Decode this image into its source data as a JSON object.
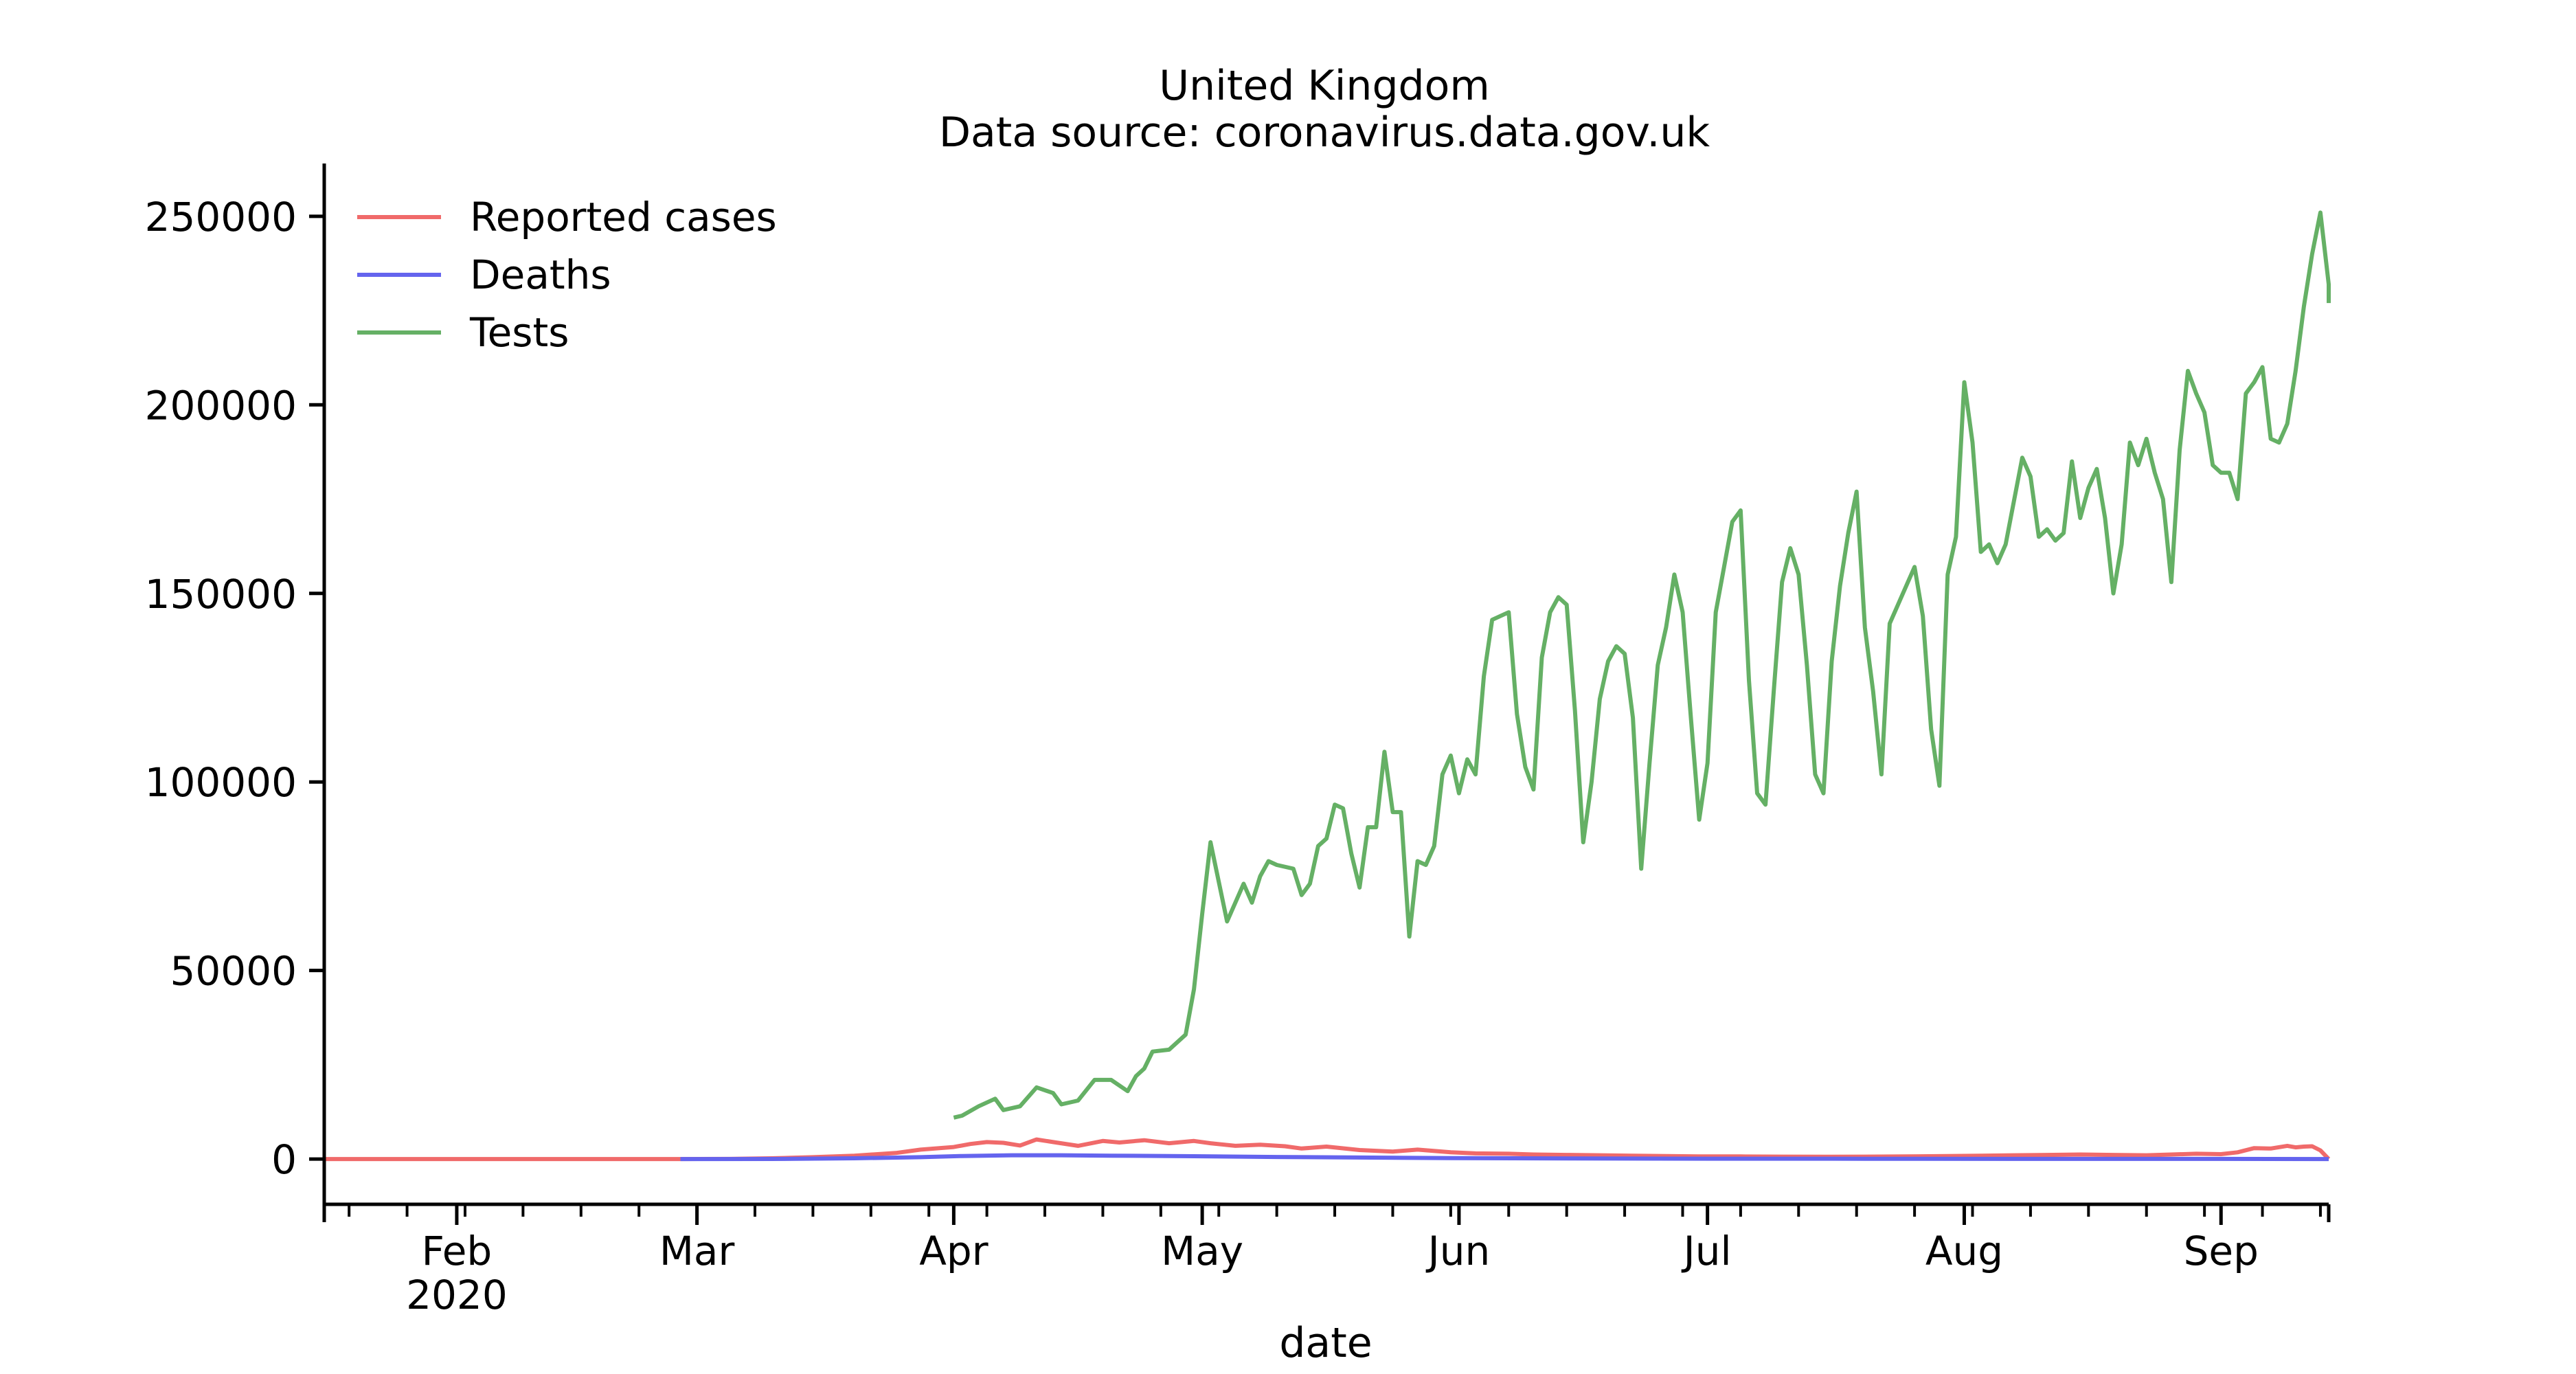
{
  "chart_data": {
    "type": "line",
    "title": "United Kingdom",
    "subtitle": "Data source: coronavirus.data.gov.uk",
    "xlabel": "date",
    "ylabel": "",
    "ylim": [
      -12000,
      264000
    ],
    "xlim": [
      "2020-01-16",
      "2020-09-14"
    ],
    "grid": false,
    "legend_position": "top-left",
    "yticks": [
      0,
      50000,
      100000,
      150000,
      200000,
      250000
    ],
    "xticks": [
      {
        "date": "2020-02-01",
        "label": "Feb",
        "sublabel": "2020"
      },
      {
        "date": "2020-03-01",
        "label": "Mar",
        "sublabel": ""
      },
      {
        "date": "2020-04-01",
        "label": "Apr",
        "sublabel": ""
      },
      {
        "date": "2020-05-01",
        "label": "May",
        "sublabel": ""
      },
      {
        "date": "2020-06-01",
        "label": "Jun",
        "sublabel": ""
      },
      {
        "date": "2020-07-01",
        "label": "Jul",
        "sublabel": ""
      },
      {
        "date": "2020-08-01",
        "label": "Aug",
        "sublabel": ""
      },
      {
        "date": "2020-09-01",
        "label": "Sep",
        "sublabel": ""
      }
    ],
    "series": [
      {
        "name": "Reported cases",
        "color": "#f06a6a",
        "points": [
          [
            "2020-01-16",
            0
          ],
          [
            "2020-02-15",
            0
          ],
          [
            "2020-02-28",
            0
          ],
          [
            "2020-03-05",
            50
          ],
          [
            "2020-03-10",
            200
          ],
          [
            "2020-03-15",
            500
          ],
          [
            "2020-03-20",
            900
          ],
          [
            "2020-03-25",
            1600
          ],
          [
            "2020-03-28",
            2500
          ],
          [
            "2020-04-01",
            3200
          ],
          [
            "2020-04-03",
            4000
          ],
          [
            "2020-04-05",
            4500
          ],
          [
            "2020-04-07",
            4300
          ],
          [
            "2020-04-09",
            3600
          ],
          [
            "2020-04-11",
            5200
          ],
          [
            "2020-04-13",
            4500
          ],
          [
            "2020-04-16",
            3500
          ],
          [
            "2020-04-19",
            4800
          ],
          [
            "2020-04-21",
            4400
          ],
          [
            "2020-04-24",
            5000
          ],
          [
            "2020-04-27",
            4200
          ],
          [
            "2020-04-30",
            4800
          ],
          [
            "2020-05-02",
            4200
          ],
          [
            "2020-05-05",
            3500
          ],
          [
            "2020-05-08",
            3800
          ],
          [
            "2020-05-11",
            3400
          ],
          [
            "2020-05-13",
            2800
          ],
          [
            "2020-05-16",
            3300
          ],
          [
            "2020-05-20",
            2400
          ],
          [
            "2020-05-24",
            2000
          ],
          [
            "2020-05-27",
            2500
          ],
          [
            "2020-05-31",
            1800
          ],
          [
            "2020-06-03",
            1500
          ],
          [
            "2020-06-07",
            1400
          ],
          [
            "2020-06-10",
            1200
          ],
          [
            "2020-06-14",
            1100
          ],
          [
            "2020-06-18",
            1000
          ],
          [
            "2020-06-22",
            900
          ],
          [
            "2020-06-26",
            800
          ],
          [
            "2020-06-30",
            700
          ],
          [
            "2020-07-05",
            700
          ],
          [
            "2020-07-10",
            650
          ],
          [
            "2020-07-15",
            600
          ],
          [
            "2020-07-20",
            650
          ],
          [
            "2020-07-25",
            700
          ],
          [
            "2020-07-30",
            800
          ],
          [
            "2020-08-03",
            900
          ],
          [
            "2020-08-07",
            1000
          ],
          [
            "2020-08-11",
            1100
          ],
          [
            "2020-08-15",
            1200
          ],
          [
            "2020-08-19",
            1100
          ],
          [
            "2020-08-23",
            1000
          ],
          [
            "2020-08-26",
            1200
          ],
          [
            "2020-08-29",
            1400
          ],
          [
            "2020-09-01",
            1300
          ],
          [
            "2020-09-03",
            1800
          ],
          [
            "2020-09-05",
            2900
          ],
          [
            "2020-09-07",
            2800
          ],
          [
            "2020-09-09",
            3500
          ],
          [
            "2020-09-10",
            3100
          ],
          [
            "2020-09-11",
            3300
          ],
          [
            "2020-09-12",
            3400
          ],
          [
            "2020-09-13",
            2300
          ],
          [
            "2020-09-14",
            0
          ]
        ]
      },
      {
        "name": "Deaths",
        "color": "#6464ee",
        "points": [
          [
            "2020-02-28",
            0
          ],
          [
            "2020-03-10",
            20
          ],
          [
            "2020-03-20",
            200
          ],
          [
            "2020-03-28",
            500
          ],
          [
            "2020-04-02",
            800
          ],
          [
            "2020-04-08",
            1000
          ],
          [
            "2020-04-14",
            1000
          ],
          [
            "2020-04-20",
            900
          ],
          [
            "2020-04-30",
            750
          ],
          [
            "2020-05-10",
            550
          ],
          [
            "2020-05-20",
            400
          ],
          [
            "2020-05-31",
            250
          ],
          [
            "2020-06-15",
            150
          ],
          [
            "2020-07-01",
            100
          ],
          [
            "2020-07-20",
            80
          ],
          [
            "2020-08-10",
            50
          ],
          [
            "2020-09-01",
            40
          ],
          [
            "2020-09-14",
            0
          ]
        ]
      },
      {
        "name": "Tests",
        "color": "#65b065",
        "points": [
          [
            "2020-04-01",
            11000
          ],
          [
            "2020-04-02",
            11500
          ],
          [
            "2020-04-04",
            14000
          ],
          [
            "2020-04-06",
            16000
          ],
          [
            "2020-04-07",
            13000
          ],
          [
            "2020-04-09",
            14000
          ],
          [
            "2020-04-11",
            19000
          ],
          [
            "2020-04-13",
            17500
          ],
          [
            "2020-04-14",
            14500
          ],
          [
            "2020-04-16",
            15500
          ],
          [
            "2020-04-18",
            21000
          ],
          [
            "2020-04-20",
            21000
          ],
          [
            "2020-04-22",
            18000
          ],
          [
            "2020-04-23",
            22000
          ],
          [
            "2020-04-24",
            24000
          ],
          [
            "2020-04-25",
            28500
          ],
          [
            "2020-04-27",
            29000
          ],
          [
            "2020-04-29",
            33000
          ],
          [
            "2020-04-30",
            45000
          ],
          [
            "2020-05-01",
            65000
          ],
          [
            "2020-05-02",
            84000
          ],
          [
            "2020-05-04",
            63000
          ],
          [
            "2020-05-06",
            73000
          ],
          [
            "2020-05-07",
            68000
          ],
          [
            "2020-05-08",
            75000
          ],
          [
            "2020-05-09",
            79000
          ],
          [
            "2020-05-10",
            78000
          ],
          [
            "2020-05-12",
            77000
          ],
          [
            "2020-05-13",
            70000
          ],
          [
            "2020-05-14",
            73000
          ],
          [
            "2020-05-15",
            83000
          ],
          [
            "2020-05-16",
            85000
          ],
          [
            "2020-05-17",
            94000
          ],
          [
            "2020-05-18",
            93000
          ],
          [
            "2020-05-19",
            81000
          ],
          [
            "2020-05-20",
            72000
          ],
          [
            "2020-05-21",
            88000
          ],
          [
            "2020-05-22",
            88000
          ],
          [
            "2020-05-23",
            108000
          ],
          [
            "2020-05-24",
            92000
          ],
          [
            "2020-05-25",
            92000
          ],
          [
            "2020-05-26",
            59000
          ],
          [
            "2020-05-27",
            79000
          ],
          [
            "2020-05-28",
            78000
          ],
          [
            "2020-05-29",
            83000
          ],
          [
            "2020-05-30",
            102000
          ],
          [
            "2020-05-31",
            107000
          ],
          [
            "2020-06-01",
            97000
          ],
          [
            "2020-06-02",
            106000
          ],
          [
            "2020-06-03",
            102000
          ],
          [
            "2020-06-04",
            128000
          ],
          [
            "2020-06-05",
            143000
          ],
          [
            "2020-06-07",
            145000
          ],
          [
            "2020-06-08",
            118000
          ],
          [
            "2020-06-09",
            104000
          ],
          [
            "2020-06-10",
            98000
          ],
          [
            "2020-06-11",
            133000
          ],
          [
            "2020-06-12",
            145000
          ],
          [
            "2020-06-13",
            149000
          ],
          [
            "2020-06-14",
            147000
          ],
          [
            "2020-06-15",
            119000
          ],
          [
            "2020-06-16",
            84000
          ],
          [
            "2020-06-17",
            100000
          ],
          [
            "2020-06-18",
            122000
          ],
          [
            "2020-06-19",
            132000
          ],
          [
            "2020-06-20",
            136000
          ],
          [
            "2020-06-21",
            134000
          ],
          [
            "2020-06-22",
            117000
          ],
          [
            "2020-06-23",
            77000
          ],
          [
            "2020-06-24",
            105000
          ],
          [
            "2020-06-25",
            131000
          ],
          [
            "2020-06-26",
            141000
          ],
          [
            "2020-06-27",
            155000
          ],
          [
            "2020-06-28",
            145000
          ],
          [
            "2020-06-29",
            117000
          ],
          [
            "2020-06-30",
            90000
          ],
          [
            "2020-07-01",
            105000
          ],
          [
            "2020-07-02",
            145000
          ],
          [
            "2020-07-03",
            157000
          ],
          [
            "2020-07-04",
            169000
          ],
          [
            "2020-07-05",
            172000
          ],
          [
            "2020-07-06",
            127000
          ],
          [
            "2020-07-07",
            97000
          ],
          [
            "2020-07-08",
            94000
          ],
          [
            "2020-07-09",
            124000
          ],
          [
            "2020-07-10",
            153000
          ],
          [
            "2020-07-11",
            162000
          ],
          [
            "2020-07-12",
            155000
          ],
          [
            "2020-07-13",
            131000
          ],
          [
            "2020-07-14",
            102000
          ],
          [
            "2020-07-15",
            97000
          ],
          [
            "2020-07-16",
            132000
          ],
          [
            "2020-07-17",
            152000
          ],
          [
            "2020-07-18",
            166000
          ],
          [
            "2020-07-19",
            177000
          ],
          [
            "2020-07-20",
            141000
          ],
          [
            "2020-07-21",
            124000
          ],
          [
            "2020-07-22",
            102000
          ],
          [
            "2020-07-23",
            142000
          ],
          [
            "2020-07-24",
            147000
          ],
          [
            "2020-07-25",
            152000
          ],
          [
            "2020-07-26",
            157000
          ],
          [
            "2020-07-27",
            144000
          ],
          [
            "2020-07-28",
            114000
          ],
          [
            "2020-07-29",
            99000
          ],
          [
            "2020-07-30",
            155000
          ],
          [
            "2020-07-31",
            165000
          ],
          [
            "2020-08-01",
            206000
          ],
          [
            "2020-08-02",
            190000
          ],
          [
            "2020-08-03",
            161000
          ],
          [
            "2020-08-04",
            163000
          ],
          [
            "2020-08-05",
            158000
          ],
          [
            "2020-08-06",
            163000
          ],
          [
            "2020-08-08",
            186000
          ],
          [
            "2020-08-09",
            181000
          ],
          [
            "2020-08-10",
            165000
          ],
          [
            "2020-08-11",
            167000
          ],
          [
            "2020-08-12",
            164000
          ],
          [
            "2020-08-13",
            166000
          ],
          [
            "2020-08-14",
            185000
          ],
          [
            "2020-08-15",
            170000
          ],
          [
            "2020-08-16",
            178000
          ],
          [
            "2020-08-17",
            183000
          ],
          [
            "2020-08-18",
            170000
          ],
          [
            "2020-08-19",
            150000
          ],
          [
            "2020-08-20",
            163000
          ],
          [
            "2020-08-21",
            190000
          ],
          [
            "2020-08-22",
            184000
          ],
          [
            "2020-08-23",
            191000
          ],
          [
            "2020-08-24",
            182000
          ],
          [
            "2020-08-25",
            175000
          ],
          [
            "2020-08-26",
            153000
          ],
          [
            "2020-08-27",
            188000
          ],
          [
            "2020-08-28",
            209000
          ],
          [
            "2020-08-29",
            203000
          ],
          [
            "2020-08-30",
            198000
          ],
          [
            "2020-08-31",
            184000
          ],
          [
            "2020-09-01",
            182000
          ],
          [
            "2020-09-02",
            182000
          ],
          [
            "2020-09-03",
            175000
          ],
          [
            "2020-09-04",
            203000
          ],
          [
            "2020-09-05",
            206000
          ],
          [
            "2020-09-06",
            210000
          ],
          [
            "2020-09-07",
            191000
          ],
          [
            "2020-09-08",
            190000
          ],
          [
            "2020-09-09",
            195000
          ],
          [
            "2020-09-10",
            209000
          ],
          [
            "2020-09-11",
            226000
          ],
          [
            "2020-09-12",
            240000
          ],
          [
            "2020-09-13",
            251000
          ],
          [
            "2020-09-14",
            232000
          ],
          [
            "2020-09-15",
            227000
          ]
        ]
      }
    ]
  }
}
